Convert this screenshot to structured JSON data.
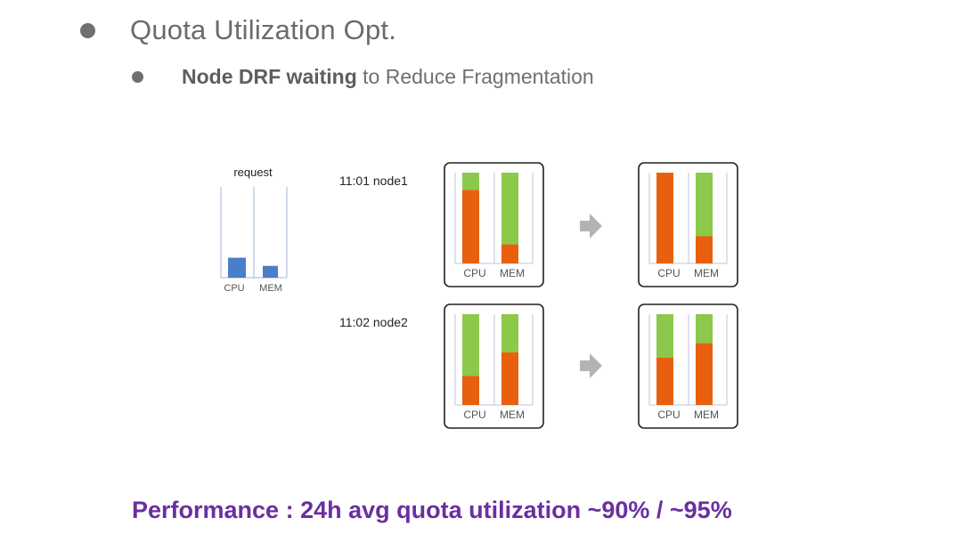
{
  "header": {
    "title": "Quota Utilization Opt.",
    "subtitle_bold": "Node DRF waiting",
    "subtitle_rest": " to Reduce Fragmentation"
  },
  "request": {
    "label": "request",
    "cpu_label": "CPU",
    "mem_label": "MEM",
    "cpu": 0.22,
    "mem": 0.13,
    "color": "#4a7ec8"
  },
  "colors": {
    "used": "#e8600e",
    "free": "#8cc94b",
    "arrow": "#b3b3b3",
    "frame": "#222222",
    "performance": "#6a2fa0"
  },
  "nodes": [
    {
      "label": "11:01 node1",
      "before": {
        "cpu_used": 0.81,
        "mem_used": 0.21
      },
      "after": {
        "cpu_used": 1.0,
        "mem_used": 0.3
      }
    },
    {
      "label": "11:02 node2",
      "before": {
        "cpu_used": 0.32,
        "mem_used": 0.58
      },
      "after": {
        "cpu_used": 0.52,
        "mem_used": 0.68
      }
    }
  ],
  "axis_labels": {
    "cpu": "CPU",
    "mem": "MEM"
  },
  "performance": "Performance : 24h avg quota utilization ~90% / ~95%"
}
